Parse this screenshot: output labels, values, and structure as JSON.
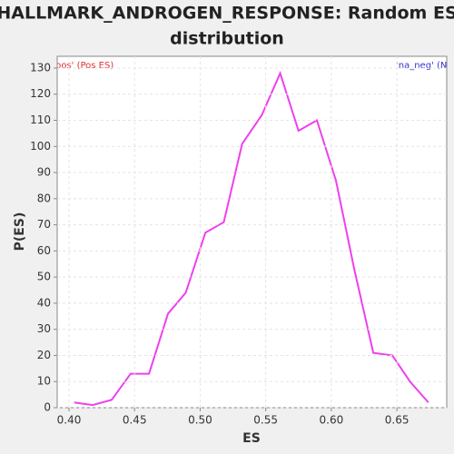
{
  "chart_data": {
    "type": "line",
    "title": [
      "HALLMARK_ANDROGEN_RESPONSE: Random ES",
      "distribution"
    ],
    "x_label": "ES",
    "y_label": "P(ES)",
    "legend": [
      {
        "label": "pos' (Pos ES)",
        "color": "#e03030"
      },
      {
        "label": "'na_neg' (Ne",
        "color": "#3030d0"
      }
    ],
    "x": [
      0.404,
      0.418,
      0.4325,
      0.447,
      0.461,
      0.4755,
      0.489,
      0.504,
      0.518,
      0.532,
      0.547,
      0.561,
      0.575,
      0.589,
      0.6035,
      0.6175,
      0.632,
      0.6465,
      0.66,
      0.674
    ],
    "series": [
      {
        "color": "#ee40ee",
        "values": [
          2,
          1,
          3,
          13,
          13,
          36,
          44,
          67,
          71,
          101,
          112,
          128,
          106,
          110,
          87,
          53,
          21,
          20,
          10,
          2
        ]
      }
    ],
    "xlim": [
      0.391,
      0.688
    ],
    "ylim": [
      0,
      134.5
    ],
    "xticks": [
      {
        "value": 0.4,
        "label": "0.40"
      },
      0.45,
      {
        "value": 0.5,
        "label": "0.50"
      },
      0.55,
      {
        "value": 0.6,
        "label": "0.60"
      },
      0.65
    ],
    "yticks": [
      0,
      10,
      20,
      30,
      40,
      50,
      60,
      70,
      80,
      90,
      100,
      110,
      120,
      130
    ],
    "grid": true
  }
}
